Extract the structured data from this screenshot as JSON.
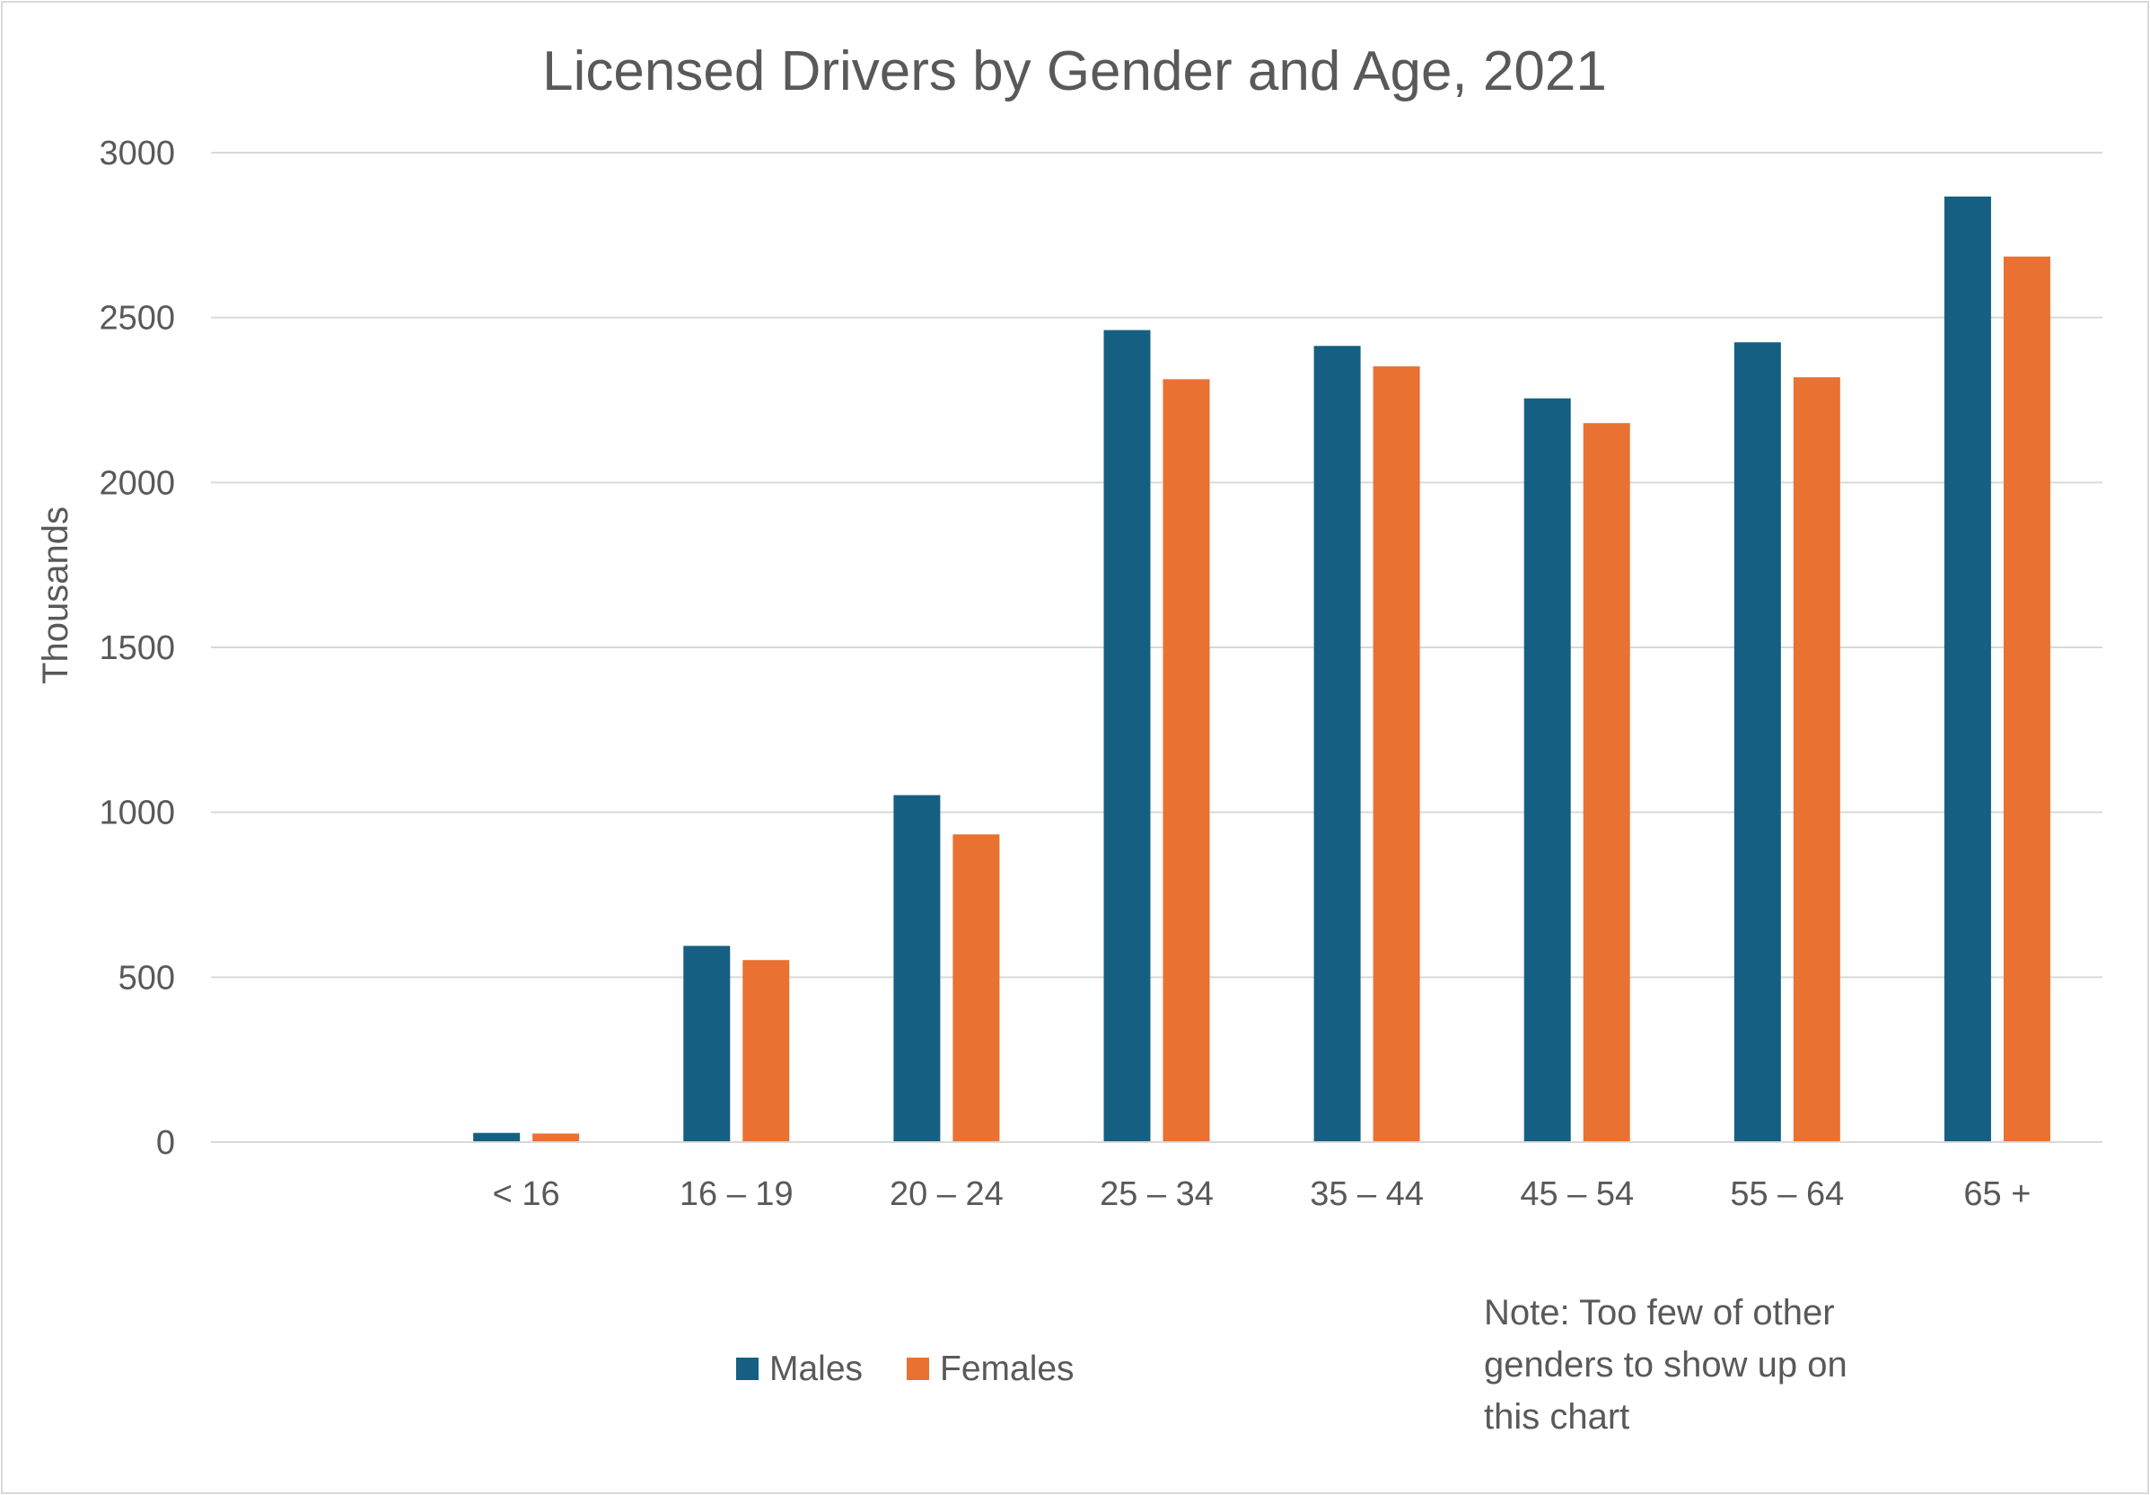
{
  "chart_data": {
    "type": "bar",
    "title": "Licensed Drivers by Gender and Age, 2021",
    "xlabel": "",
    "ylabel": "Thousands",
    "categories": [
      "",
      "< 16",
      "16 – 19",
      "20 – 24",
      "25 – 34",
      "35 – 44",
      "45 – 54",
      "55 – 64",
      "65 +"
    ],
    "series": [
      {
        "name": "Males",
        "color": "#156082",
        "values": [
          null,
          28,
          595,
          1052,
          2462,
          2414,
          2255,
          2425,
          2867
        ]
      },
      {
        "name": "Females",
        "color": "#E97132",
        "values": [
          null,
          26,
          552,
          933,
          2313,
          2352,
          2180,
          2319,
          2685
        ]
      }
    ],
    "ylim": [
      0,
      3000
    ],
    "yticks": [
      0,
      500,
      1000,
      1500,
      2000,
      2500,
      3000
    ],
    "grid": true,
    "gridColor": "#d9d9d9",
    "legend": "bottom",
    "note_lines": [
      "Note: Too few of other",
      "genders to show up on",
      "this chart"
    ]
  }
}
